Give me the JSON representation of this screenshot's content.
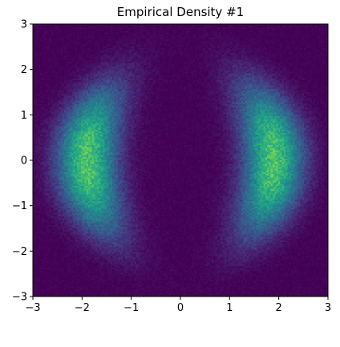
{
  "chart_data": {
    "type": "heatmap",
    "title": "Empirical Density #1",
    "xlabel": "",
    "ylabel": "",
    "xlim": [
      -3,
      3
    ],
    "ylim": [
      -3,
      3
    ],
    "x_ticks": [
      "−3",
      "−2",
      "−1",
      "0",
      "1",
      "2",
      "3"
    ],
    "y_ticks": [
      "−3",
      "−2",
      "−1",
      "0",
      "1",
      "2",
      "3"
    ],
    "x_tick_values": [
      -3,
      -2,
      -1,
      0,
      1,
      2,
      3
    ],
    "y_tick_values": [
      -3,
      -2,
      -1,
      0,
      1,
      2,
      3
    ],
    "bins": [
      160,
      160
    ],
    "colormap": "viridis",
    "grid": false,
    "density_components": [
      {
        "x_center": -1.9,
        "y_center": 0.0,
        "y_extent": 1.6,
        "curvature": 0.15,
        "peak": 1.0
      },
      {
        "x_center": 1.9,
        "y_center": 0.0,
        "y_extent": 1.6,
        "curvature": -0.15,
        "peak": 1.0
      }
    ]
  },
  "colors": {
    "background": "#440154",
    "low": "#46317e",
    "mid": "#26828e",
    "high": "#6ece58"
  }
}
